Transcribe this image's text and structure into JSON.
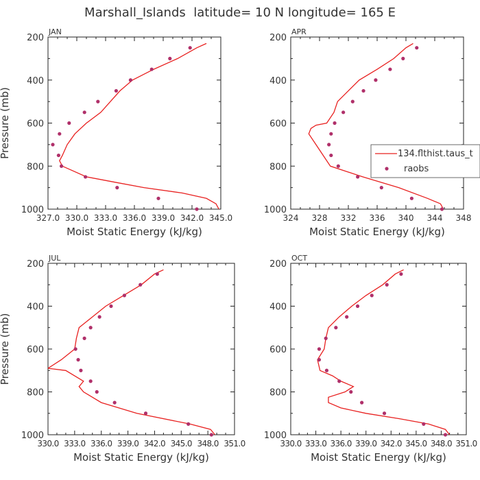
{
  "figure": {
    "title": "Marshall_Islands  latitude= 10 N longitude= 165 E"
  },
  "chart_data": [
    {
      "type": "line",
      "panel_label": "JAN",
      "xlabel": "Moist Static Energy (kJ/kg)",
      "ylabel": "Pressure (mb)",
      "xlim": [
        327.0,
        345.0
      ],
      "ylim": [
        1000,
        200
      ],
      "x_ticks": [
        "327.0",
        "330.0",
        "333.0",
        "336.0",
        "339.0",
        "342.0",
        "345.0"
      ],
      "y_ticks": [
        "200",
        "400",
        "600",
        "800",
        "1000"
      ],
      "legend": null,
      "series": [
        {
          "kind": "line",
          "color": "#e8201f",
          "points": [
            [
              344.8,
              1000
            ],
            [
              344.5,
              975
            ],
            [
              343.5,
              950
            ],
            [
              341,
              925
            ],
            [
              337,
              900
            ],
            [
              334,
              875
            ],
            [
              331,
              850
            ],
            [
              328.5,
              800
            ],
            [
              328.2,
              775
            ],
            [
              328.5,
              750
            ],
            [
              329,
              700
            ],
            [
              329.8,
              650
            ],
            [
              331,
              600
            ],
            [
              332.5,
              550
            ],
            [
              333.5,
              500
            ],
            [
              334.5,
              450
            ],
            [
              335.8,
              400
            ],
            [
              338,
              350
            ],
            [
              340.5,
              300
            ],
            [
              342.5,
              250
            ],
            [
              343.5,
              230
            ]
          ]
        },
        {
          "kind": "points",
          "color": "#b0306a",
          "points": [
            [
              342.5,
              1000
            ],
            [
              338.5,
              950
            ],
            [
              334.2,
              900
            ],
            [
              330.9,
              850
            ],
            [
              328.4,
              800
            ],
            [
              328.1,
              750
            ],
            [
              327.5,
              700
            ],
            [
              328.2,
              650
            ],
            [
              329.2,
              600
            ],
            [
              330.8,
              550
            ],
            [
              332.2,
              500
            ],
            [
              334.1,
              450
            ],
            [
              335.6,
              400
            ],
            [
              337.8,
              350
            ],
            [
              339.7,
              300
            ],
            [
              341.8,
              250
            ]
          ]
        }
      ]
    },
    {
      "type": "line",
      "panel_label": "APR",
      "xlabel": "Moist Static Energy (kJ/kg)",
      "ylabel": "",
      "xlim": [
        324,
        348
      ],
      "ylim": [
        1000,
        200
      ],
      "x_ticks": [
        "324",
        "328",
        "332",
        "336",
        "340",
        "344",
        "348"
      ],
      "y_ticks": [
        "200",
        "400",
        "600",
        "800",
        "1000"
      ],
      "legend": {
        "position": "right",
        "entries": [
          "134.flthist.taus_t",
          "raobs"
        ]
      },
      "series": [
        {
          "kind": "line",
          "name": "134.flthist.taus_t",
          "color": "#e8201f",
          "points": [
            [
              345.2,
              1000
            ],
            [
              344.8,
              975
            ],
            [
              343,
              950
            ],
            [
              339,
              900
            ],
            [
              334,
              850
            ],
            [
              329.5,
              800
            ],
            [
              328.5,
              750
            ],
            [
              327.5,
              700
            ],
            [
              326.5,
              650
            ],
            [
              326.8,
              625
            ],
            [
              327.5,
              610
            ],
            [
              329,
              600
            ],
            [
              330,
              550
            ],
            [
              330.5,
              500
            ],
            [
              332,
              450
            ],
            [
              333.5,
              400
            ],
            [
              336,
              350
            ],
            [
              338.3,
              300
            ],
            [
              340,
              250
            ],
            [
              341,
              230
            ]
          ]
        },
        {
          "kind": "points",
          "name": "raobs",
          "color": "#b0306a",
          "points": [
            [
              345,
              1000
            ],
            [
              340.8,
              950
            ],
            [
              336.6,
              900
            ],
            [
              333.3,
              850
            ],
            [
              330.6,
              800
            ],
            [
              329.6,
              750
            ],
            [
              329.3,
              700
            ],
            [
              329.6,
              650
            ],
            [
              330.1,
              600
            ],
            [
              331.3,
              550
            ],
            [
              332.6,
              500
            ],
            [
              334.1,
              450
            ],
            [
              335.8,
              400
            ],
            [
              337.8,
              350
            ],
            [
              339.6,
              300
            ],
            [
              341.5,
              250
            ]
          ]
        }
      ]
    },
    {
      "type": "line",
      "panel_label": "JUL",
      "xlabel": "Moist Static Energy (kJ/kg)",
      "ylabel": "Pressure (mb)",
      "xlim": [
        330.0,
        351.0
      ],
      "ylim": [
        1000,
        200
      ],
      "x_ticks": [
        "330.0",
        "333.0",
        "336.0",
        "339.0",
        "342.0",
        "345.0",
        "348.0",
        "351.0"
      ],
      "tick_label_strings": [
        "330.0",
        "333.0",
        "336.0",
        "339.0",
        "342.0",
        "345.0",
        "348.0",
        "351.0"
      ],
      "y_ticks": [
        "200",
        "400",
        "600",
        "800",
        "1000"
      ],
      "legend": null,
      "series": [
        {
          "kind": "line",
          "color": "#e8201f",
          "points": [
            [
              348.8,
              1000
            ],
            [
              348.3,
              975
            ],
            [
              346,
              950
            ],
            [
              340,
              900
            ],
            [
              336,
              850
            ],
            [
              334,
              800
            ],
            [
              333.5,
              775
            ],
            [
              334,
              750
            ],
            [
              332,
              700
            ],
            [
              330,
              690
            ],
            [
              331.5,
              650
            ],
            [
              333,
              600
            ],
            [
              333.2,
              550
            ],
            [
              333.5,
              500
            ],
            [
              335,
              450
            ],
            [
              336.5,
              400
            ],
            [
              338.5,
              350
            ],
            [
              340.5,
              300
            ],
            [
              342,
              250
            ],
            [
              343,
              230
            ]
          ]
        },
        {
          "kind": "points",
          "color": "#b0306a",
          "points": [
            [
              348.4,
              1000
            ],
            [
              345.8,
              950
            ],
            [
              341,
              900
            ],
            [
              337.5,
              850
            ],
            [
              335.5,
              800
            ],
            [
              334.8,
              750
            ],
            [
              333.7,
              700
            ],
            [
              333.4,
              650
            ],
            [
              333.1,
              600
            ],
            [
              334.1,
              550
            ],
            [
              334.8,
              500
            ],
            [
              335.8,
              450
            ],
            [
              337.1,
              400
            ],
            [
              338.6,
              350
            ],
            [
              340.4,
              300
            ],
            [
              342.3,
              250
            ]
          ]
        }
      ]
    },
    {
      "type": "line",
      "panel_label": "OCT",
      "xlabel": "Moist Static Energy (kJ/kg)",
      "ylabel": "",
      "xlim": [
        330.0,
        351.0
      ],
      "ylim": [
        1000,
        200
      ],
      "x_ticks": [
        "330.0",
        "333.0",
        "336.0",
        "339.0",
        "342.0",
        "345.0",
        "348.0",
        "351.0"
      ],
      "y_ticks": [
        "200",
        "400",
        "600",
        "800",
        "1000"
      ],
      "legend": null,
      "series": [
        {
          "kind": "line",
          "color": "#e8201f",
          "points": [
            [
              349,
              1000
            ],
            [
              348.5,
              975
            ],
            [
              346.5,
              950
            ],
            [
              343,
              925
            ],
            [
              339,
              900
            ],
            [
              336,
              875
            ],
            [
              334.5,
              850
            ],
            [
              334.5,
              825
            ],
            [
              336.5,
              800
            ],
            [
              337.5,
              775
            ],
            [
              336,
              750
            ],
            [
              335,
              725
            ],
            [
              333.5,
              700
            ],
            [
              333.2,
              650
            ],
            [
              334,
              600
            ],
            [
              334.2,
              550
            ],
            [
              334.5,
              500
            ],
            [
              335.8,
              450
            ],
            [
              337.3,
              400
            ],
            [
              339,
              350
            ],
            [
              341,
              300
            ],
            [
              342.5,
              250
            ],
            [
              343.5,
              230
            ]
          ]
        },
        {
          "kind": "points",
          "color": "#b0306a",
          "points": [
            [
              348.5,
              1000
            ],
            [
              345.9,
              950
            ],
            [
              341.2,
              900
            ],
            [
              338.5,
              850
            ],
            [
              337.2,
              800
            ],
            [
              335.8,
              750
            ],
            [
              334.3,
              700
            ],
            [
              333.4,
              650
            ],
            [
              333.4,
              600
            ],
            [
              334.2,
              550
            ],
            [
              335.4,
              500
            ],
            [
              336.7,
              450
            ],
            [
              338,
              400
            ],
            [
              339.7,
              350
            ],
            [
              341.5,
              300
            ],
            [
              343.2,
              250
            ]
          ]
        }
      ]
    }
  ]
}
